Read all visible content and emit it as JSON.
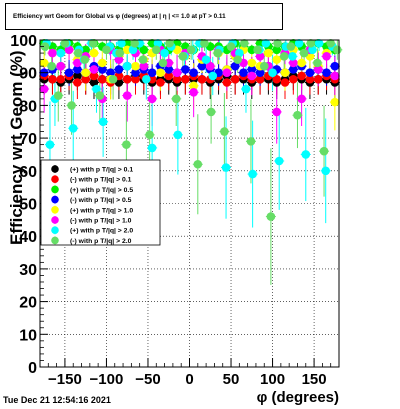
{
  "title_box": "Efficiency wrt Geom for Global vs φ (degrees) at | η | <= 1.0 at pT > 0.11",
  "timestamp": "Tue Dec 21 12:54:16 2021",
  "chart_data": {
    "type": "scatter",
    "title": "Efficiency wrt Geom for Global vs φ (degrees) at | η | <= 1.0 at pT > 0.11",
    "xlabel": "φ (degrees)",
    "ylabel": "Efficiency wrt Geom (%)",
    "xlim": [
      -180,
      180
    ],
    "ylim": [
      0,
      100
    ],
    "xticks": [
      -150,
      -100,
      -50,
      0,
      50,
      100,
      150
    ],
    "yticks": [
      0,
      10,
      20,
      30,
      40,
      50,
      60,
      70,
      80,
      90,
      100
    ],
    "grid": true,
    "legend_position": "left-middle",
    "series": [
      {
        "name": "(+) with p T/|q| > 0.1",
        "color": "#000000",
        "x": [
          -175,
          -165,
          -155,
          -145,
          -135,
          -125,
          -115,
          -105,
          -95,
          -85,
          -75,
          -65,
          -55,
          -45,
          -35,
          -25,
          -15,
          -5,
          5,
          15,
          25,
          35,
          45,
          55,
          65,
          75,
          85,
          95,
          105,
          115,
          125,
          135,
          145,
          155,
          165,
          175
        ],
        "y": [
          88,
          88,
          87,
          88,
          89,
          88,
          87,
          88,
          88,
          87,
          88,
          89,
          88,
          87,
          88,
          88,
          87,
          88,
          88,
          88,
          87,
          88,
          89,
          88,
          88,
          87,
          88,
          88,
          87,
          88,
          89,
          88,
          87,
          88,
          88,
          87
        ]
      },
      {
        "name": "(-) with p T/|q| > 0.1",
        "color": "#ff0000",
        "x": [
          -175,
          -165,
          -155,
          -145,
          -135,
          -125,
          -115,
          -105,
          -95,
          -85,
          -75,
          -65,
          -55,
          -45,
          -35,
          -25,
          -15,
          -5,
          5,
          15,
          25,
          35,
          45,
          55,
          65,
          75,
          85,
          95,
          105,
          115,
          125,
          135,
          145,
          155,
          165,
          175
        ],
        "y": [
          89,
          88,
          88,
          89,
          87,
          88,
          89,
          88,
          87,
          89,
          88,
          88,
          89,
          88,
          87,
          89,
          88,
          88,
          89,
          88,
          88,
          89,
          87,
          88,
          89,
          88,
          88,
          89,
          88,
          87,
          88,
          89,
          88,
          88,
          89,
          88
        ]
      },
      {
        "name": "(+) with p T/|q| > 0.5",
        "color": "#00ee00",
        "x": [
          -175,
          -165,
          -155,
          -145,
          -135,
          -125,
          -115,
          -105,
          -95,
          -85,
          -75,
          -65,
          -55,
          -45,
          -35,
          -25,
          -15,
          -5,
          5,
          15,
          25,
          35,
          45,
          55,
          65,
          75,
          85,
          95,
          105,
          115,
          125,
          135,
          145,
          155,
          165,
          175
        ],
        "y": [
          99,
          98,
          97,
          99,
          98,
          97,
          99,
          98,
          98,
          97,
          99,
          98,
          97,
          99,
          98,
          97,
          99,
          98,
          97,
          99,
          98,
          98,
          97,
          99,
          98,
          97,
          99,
          98,
          97,
          98,
          99,
          98,
          97,
          99,
          98,
          97
        ]
      },
      {
        "name": "(-) with p T/|q| > 0.5",
        "color": "#0000ff",
        "x": [
          -175,
          -165,
          -155,
          -145,
          -135,
          -125,
          -115,
          -105,
          -95,
          -85,
          -75,
          -65,
          -55,
          -45,
          -35,
          -25,
          -15,
          -5,
          5,
          15,
          25,
          35,
          45,
          55,
          65,
          75,
          85,
          95,
          105,
          115,
          125,
          135,
          145,
          155,
          165,
          175
        ],
        "y": [
          90,
          91,
          92,
          90,
          91,
          90,
          92,
          91,
          90,
          91,
          92,
          90,
          91,
          90,
          92,
          91,
          90,
          91,
          90,
          92,
          91,
          90,
          91,
          92,
          90,
          91,
          90,
          92,
          91,
          90,
          91,
          92,
          90,
          91,
          90,
          92
        ]
      },
      {
        "name": "(+) with p T/|q| > 1.0",
        "color": "#ffff00",
        "x": [
          -175,
          -165,
          -155,
          -145,
          -135,
          -125,
          -115,
          -105,
          -95,
          -85,
          -75,
          -65,
          -55,
          -45,
          -35,
          -25,
          -15,
          -5,
          5,
          15,
          25,
          35,
          45,
          55,
          65,
          75,
          85,
          95,
          105,
          115,
          125,
          135,
          145,
          155,
          165,
          175
        ],
        "y": [
          93,
          96,
          92,
          97,
          94,
          90,
          96,
          93,
          88,
          95,
          97,
          92,
          94,
          96,
          90,
          93,
          97,
          95,
          86,
          94,
          92,
          96,
          91,
          95,
          97,
          93,
          92,
          96,
          94,
          90,
          97,
          93,
          95,
          92,
          96,
          81
        ]
      },
      {
        "name": "(-) with p T/|q| > 1.0",
        "color": "#ff00ff",
        "x": [
          -175,
          -165,
          -155,
          -145,
          -135,
          -125,
          -115,
          -105,
          -95,
          -85,
          -75,
          -65,
          -55,
          -45,
          -35,
          -25,
          -15,
          -5,
          5,
          15,
          25,
          35,
          45,
          55,
          65,
          75,
          85,
          95,
          105,
          115,
          125,
          135,
          145,
          155,
          165,
          175
        ],
        "y": [
          85,
          96,
          92,
          97,
          93,
          95,
          91,
          82,
          97,
          94,
          83,
          96,
          92,
          82,
          97,
          93,
          90,
          96,
          84,
          95,
          92,
          97,
          90,
          96,
          93,
          89,
          95,
          92,
          78,
          96,
          93,
          82,
          97,
          91,
          95,
          89
        ]
      },
      {
        "name": "(+) with p T/|q| > 2.0",
        "color": "#00ffff",
        "x": [
          -172,
          -168,
          -162,
          -155,
          -148,
          -140,
          -133,
          -127,
          -118,
          -112,
          -104,
          -96,
          -88,
          -82,
          -75,
          -68,
          -60,
          -52,
          -45,
          -38,
          -30,
          -22,
          -14,
          -6,
          4,
          12,
          20,
          28,
          36,
          44,
          52,
          60,
          68,
          76,
          84,
          92,
          100,
          108,
          116,
          124,
          132,
          140,
          148,
          156,
          164,
          172
        ],
        "y": [
          99,
          68,
          82,
          96,
          99,
          73,
          97,
          94,
          99,
          85,
          75,
          98,
          96,
          99,
          92,
          97,
          99,
          88,
          67,
          99,
          96,
          98,
          71,
          95,
          97,
          99,
          94,
          89,
          97,
          61,
          99,
          96,
          85,
          59,
          97,
          99,
          90,
          63,
          98,
          95,
          99,
          65,
          97,
          99,
          60,
          98
        ]
      },
      {
        "name": "(-) with p T/|q| > 2.0",
        "color": "#66dd66",
        "x": [
          -174,
          -166,
          -158,
          -150,
          -142,
          -134,
          -126,
          -116,
          -108,
          -100,
          -92,
          -84,
          -76,
          -66,
          -56,
          -48,
          -40,
          -32,
          -24,
          -16,
          -8,
          2,
          10,
          18,
          26,
          34,
          42,
          50,
          58,
          66,
          74,
          82,
          90,
          98,
          106,
          114,
          122,
          130,
          138,
          146,
          154,
          162,
          170,
          178
        ],
        "y": [
          98,
          92,
          83,
          99,
          80,
          96,
          94,
          99,
          83,
          97,
          88,
          96,
          68,
          99,
          94,
          71,
          97,
          93,
          99,
          82,
          95,
          97,
          62,
          99,
          78,
          96,
          72,
          98,
          94,
          99,
          69,
          97,
          92,
          46,
          99,
          95,
          98,
          77,
          96,
          99,
          93,
          66,
          99,
          97
        ]
      }
    ]
  }
}
